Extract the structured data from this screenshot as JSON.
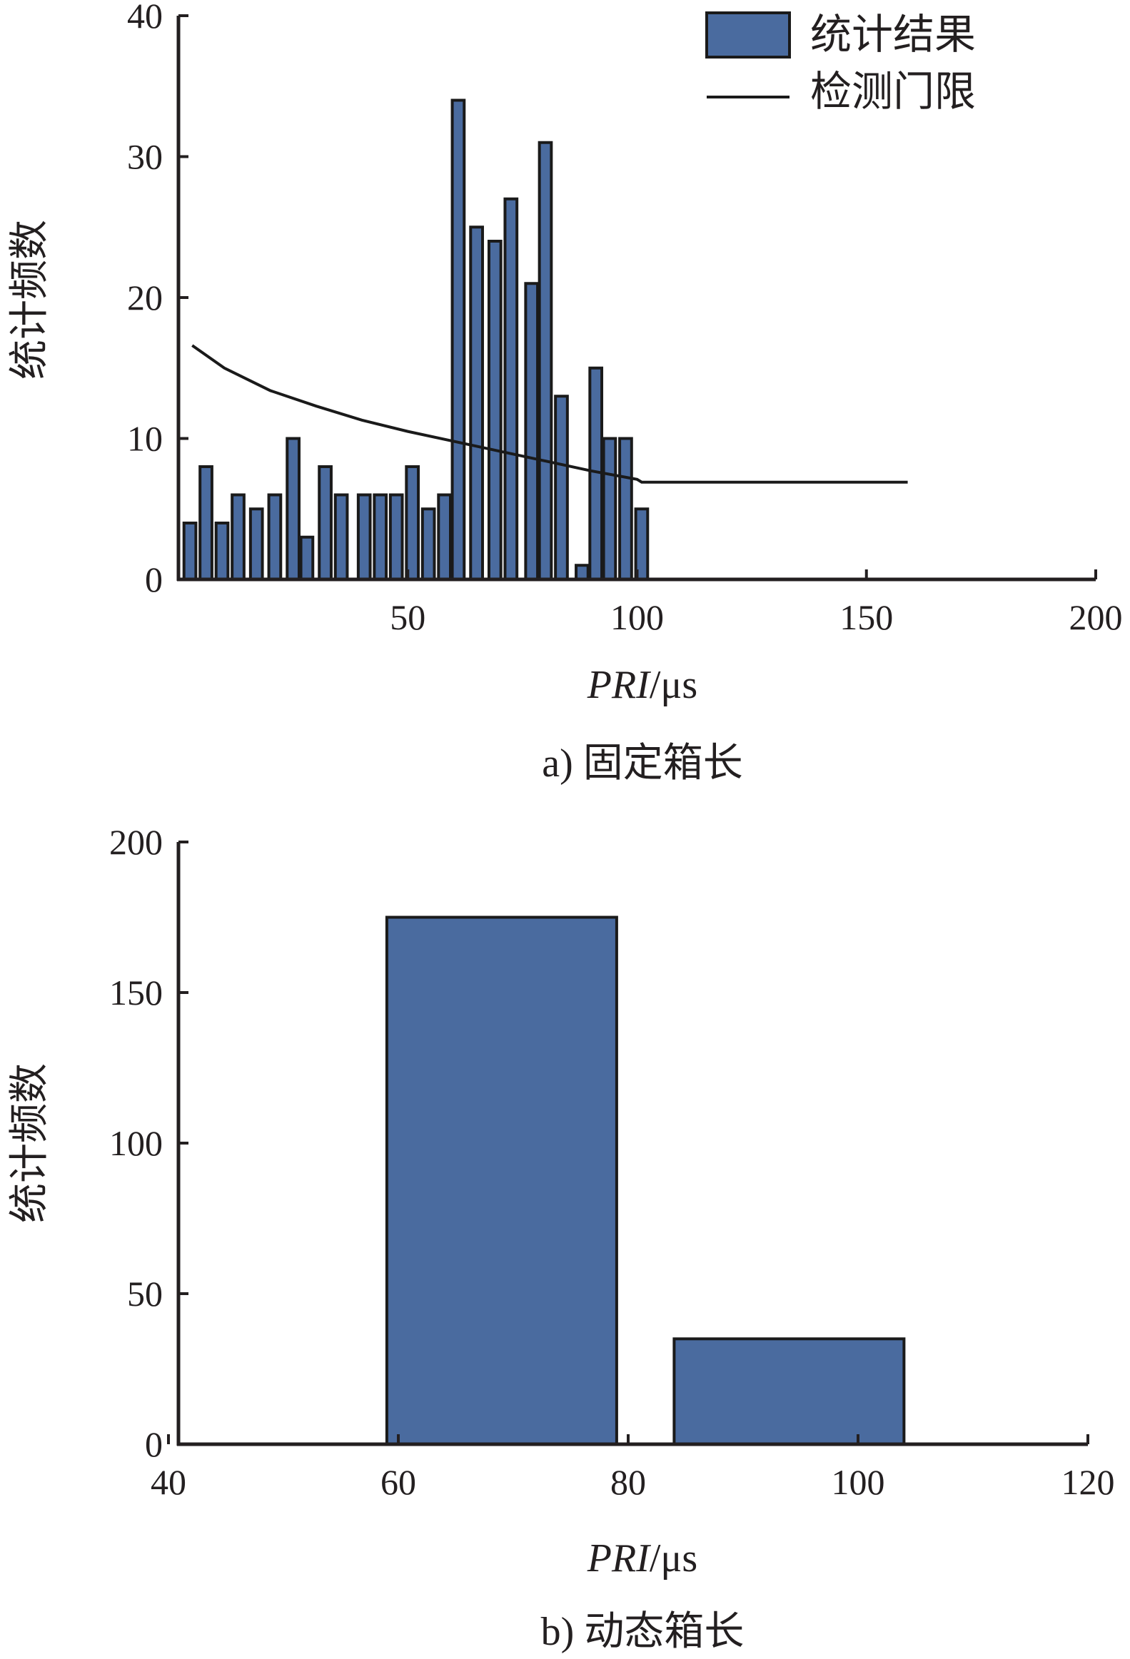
{
  "chart_data": [
    {
      "type": "bar",
      "panel": "a",
      "caption": "a) 固定箱长",
      "title": "",
      "ylabel": "统计频数",
      "xlabel": {
        "var": "PRI",
        "unit": "/μs"
      },
      "xlim": [
        0,
        200
      ],
      "ylim": [
        0,
        40
      ],
      "xticks": [
        50,
        100,
        150,
        200
      ],
      "yticks": [
        0,
        10,
        20,
        30,
        40
      ],
      "bar_width": 2.6,
      "bar_color": "#4a6b9f",
      "legend": {
        "position": "top-right",
        "items": [
          {
            "label": "统计结果",
            "kind": "bar"
          },
          {
            "label": "检测门限",
            "kind": "line"
          }
        ]
      },
      "series": [
        {
          "name": "统计结果",
          "kind": "bar",
          "x": [
            2.5,
            6,
            9.5,
            13,
            17,
            21,
            25,
            28,
            32,
            35.5,
            40.5,
            44,
            47.5,
            51,
            54.5,
            58,
            61,
            65,
            69,
            72.5,
            77,
            80,
            83.5,
            88,
            91,
            94,
            97.5,
            101
          ],
          "y": [
            4,
            8,
            4,
            6,
            5,
            6,
            10,
            3,
            8,
            6,
            6,
            6,
            6,
            8,
            5,
            6,
            34,
            25,
            24,
            27,
            21,
            31,
            13,
            1,
            15,
            10,
            10,
            5
          ]
        },
        {
          "name": "检测门限",
          "kind": "line",
          "x": [
            3,
            10,
            20,
            30,
            40,
            50,
            60,
            70,
            80,
            90,
            100,
            101,
            110,
            120,
            130,
            140,
            150,
            159
          ],
          "y": [
            16.6,
            15.0,
            13.4,
            12.3,
            11.3,
            10.5,
            9.8,
            9.1,
            8.4,
            7.7,
            7.1,
            6.9,
            6.9,
            6.9,
            6.9,
            6.9,
            6.9,
            6.9
          ]
        }
      ]
    },
    {
      "type": "bar",
      "panel": "b",
      "caption": "b) 动态箱长",
      "title": "",
      "ylabel": "统计频数",
      "xlabel": {
        "var": "PRI",
        "unit": "/μs"
      },
      "xlim": [
        40,
        120
      ],
      "ylim": [
        0,
        200
      ],
      "xticks": [
        40,
        60,
        80,
        100,
        120
      ],
      "yticks": [
        0,
        50,
        100,
        150,
        200
      ],
      "bar_color": "#4a6b9f",
      "series": [
        {
          "name": "",
          "kind": "bar",
          "bins": [
            {
              "x0": 59,
              "x1": 79,
              "y": 175
            },
            {
              "x0": 84,
              "x1": 104,
              "y": 35
            }
          ]
        }
      ]
    }
  ]
}
